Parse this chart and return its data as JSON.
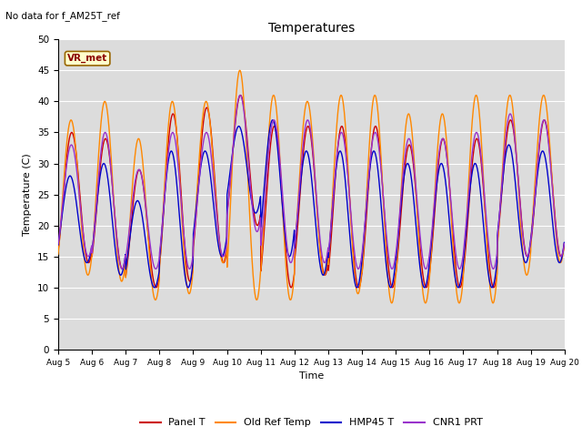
{
  "title": "Temperatures",
  "xlabel": "Time",
  "ylabel": "Temperature (C)",
  "ylim": [
    0,
    50
  ],
  "xlim_days": [
    0,
    15
  ],
  "background_color": "#dcdcdc",
  "grid_color": "white",
  "annotation_text": "No data for f_AM25T_ref",
  "vr_label": "VR_met",
  "vr_box_color": "#ffffcc",
  "vr_box_edge": "#996600",
  "series": {
    "panel_t": {
      "color": "#cc0000",
      "label": "Panel T",
      "lw": 1.0
    },
    "old_ref": {
      "color": "#ff8800",
      "label": "Old Ref Temp",
      "lw": 1.0
    },
    "hmp45": {
      "color": "#0000cc",
      "label": "HMP45 T",
      "lw": 1.0
    },
    "cnr1": {
      "color": "#9933cc",
      "label": "CNR1 PRT",
      "lw": 1.0
    }
  },
  "tick_labels": [
    "Aug 5",
    "Aug 6",
    "Aug 7",
    "Aug 8",
    "Aug 9",
    "Aug 10",
    "Aug 11",
    "Aug 12",
    "Aug 13",
    "Aug 14",
    "Aug 15",
    "Aug 16",
    "Aug 17",
    "Aug 18",
    "Aug 19",
    "Aug 20"
  ],
  "tick_positions": [
    0,
    1,
    2,
    3,
    4,
    5,
    6,
    7,
    8,
    9,
    10,
    11,
    12,
    13,
    14,
    15
  ],
  "yticks": [
    0,
    5,
    10,
    15,
    20,
    25,
    30,
    35,
    40,
    45,
    50
  ],
  "panel_peaks": [
    35,
    34,
    29,
    38,
    39,
    41,
    36,
    36,
    36,
    36,
    33,
    34,
    34,
    37,
    37
  ],
  "panel_mins": [
    14,
    13,
    10,
    11,
    14,
    20,
    10,
    12,
    10,
    10,
    10,
    10,
    10,
    15,
    15
  ],
  "oldref_peaks": [
    37,
    40,
    34,
    40,
    40,
    45,
    41,
    40,
    41,
    41,
    38,
    38,
    41,
    41,
    41
  ],
  "oldref_mins": [
    12,
    11,
    8,
    9,
    14,
    8,
    8,
    12,
    9,
    7.5,
    7.5,
    7.5,
    7.5,
    12,
    14
  ],
  "hmp45_peaks": [
    28,
    30,
    24,
    32,
    32,
    36,
    37,
    32,
    32,
    32,
    30,
    30,
    30,
    33,
    32
  ],
  "hmp45_mins": [
    14,
    12,
    10,
    10,
    15,
    22,
    15,
    12,
    10,
    10,
    10,
    10,
    10,
    14,
    14
  ],
  "cnr1_peaks": [
    33,
    35,
    29,
    35,
    35,
    41,
    37,
    37,
    35,
    35,
    34,
    34,
    35,
    38,
    37
  ],
  "cnr1_mins": [
    15,
    13,
    13,
    13,
    15,
    19,
    14,
    14,
    13,
    13,
    13,
    13,
    13,
    15,
    15
  ],
  "phase_panel": 0.15,
  "phase_oldref": 0.13,
  "phase_hmp45": 0.1,
  "phase_cnr1": 0.14
}
